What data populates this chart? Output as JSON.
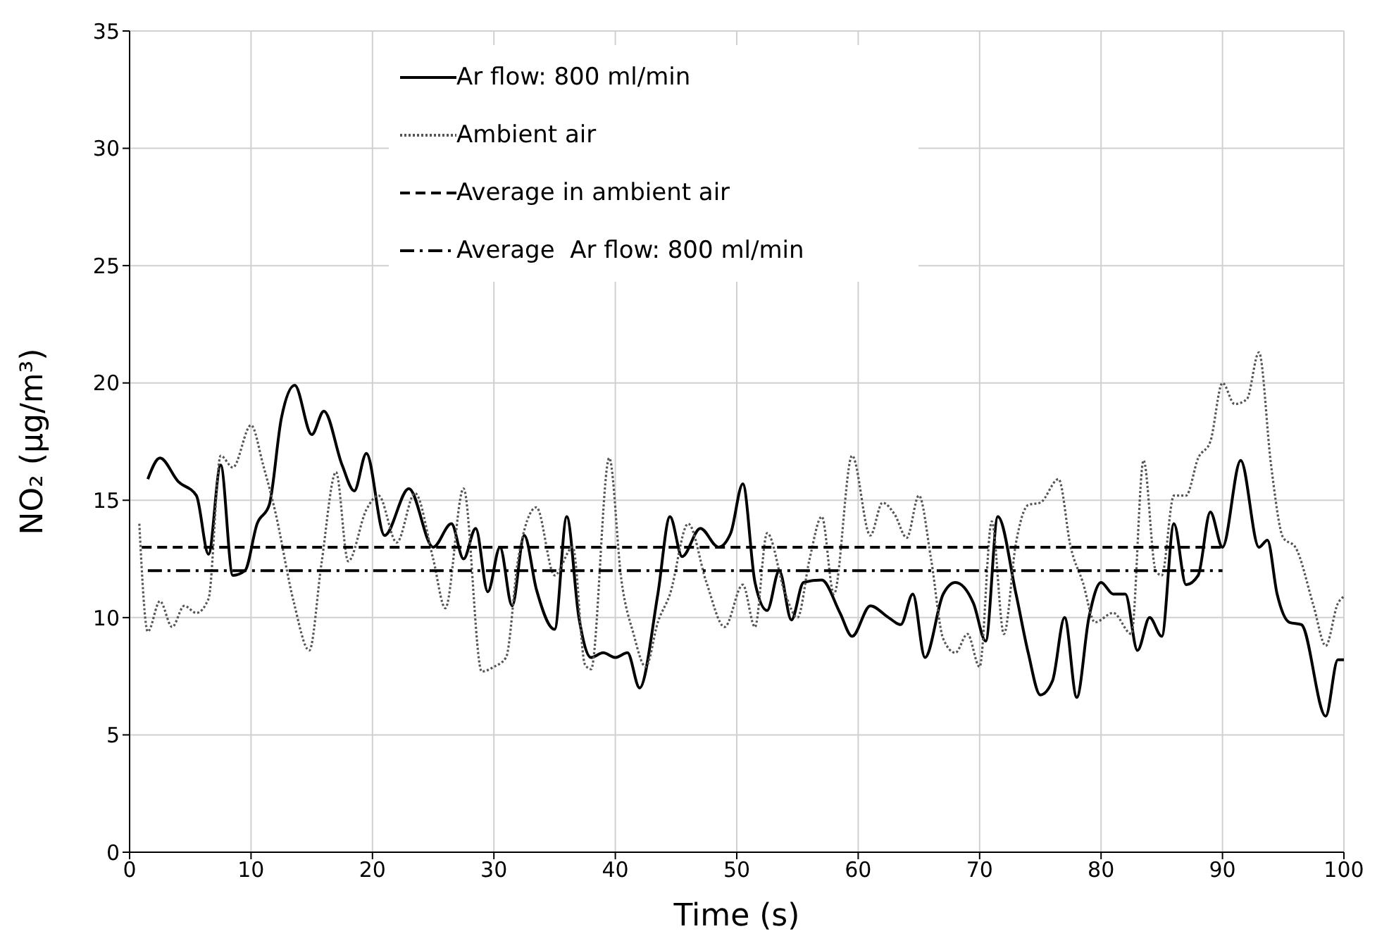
{
  "chart_data": {
    "type": "line",
    "xlabel": "Time (s)",
    "ylabel": "NO₂ (µg/m³)",
    "xlim": [
      0,
      100
    ],
    "xticks": [
      0,
      10,
      20,
      30,
      40,
      50,
      60,
      70,
      80,
      90,
      100
    ],
    "ylim": [
      0,
      35
    ],
    "yticks": [
      0,
      5,
      10,
      15,
      20,
      25,
      30,
      35
    ],
    "grid": true,
    "legend": "top",
    "marker": "none",
    "series": [
      {
        "name": "Ar flow: 800 ml/min",
        "color": "#000000",
        "line_style": "solid",
        "x": [
          1.5,
          2.5,
          4,
          5.5,
          6.5,
          7.5,
          8.5,
          9.5,
          10.5,
          11.5,
          12.5,
          13.6,
          15,
          16,
          17.5,
          18.5,
          19.5,
          21,
          23,
          25,
          26.5,
          27.5,
          28.5,
          29.5,
          30.5,
          31.5,
          32.5,
          33.5,
          35,
          36,
          37,
          38,
          39,
          40,
          41,
          42,
          43.5,
          44.5,
          45.5,
          47,
          48.5,
          49.5,
          50.5,
          51.5,
          52.5,
          53.5,
          54.5,
          55.5,
          57,
          58.5,
          59.5,
          61,
          62.5,
          63.5,
          64.5,
          65.5,
          67,
          68,
          69.5,
          70.5,
          71.5,
          73,
          74,
          75,
          76,
          77,
          78,
          79,
          80,
          81,
          82,
          83,
          84,
          85,
          86,
          87,
          88,
          89,
          90,
          91.5,
          93,
          93.7,
          94.5,
          95.5,
          96.5,
          98.5,
          99.5,
          100
        ],
        "values": [
          15.9,
          16.8,
          15.8,
          15.2,
          12.7,
          16.5,
          11.8,
          12,
          14,
          14.8,
          18.5,
          19.9,
          17.8,
          18.8,
          16.5,
          15.4,
          17,
          13.5,
          15.5,
          13,
          14,
          12.5,
          13.8,
          11.1,
          13,
          10.5,
          13.5,
          11.2,
          9.5,
          14.3,
          10,
          8.3,
          8.5,
          8.3,
          8.5,
          7,
          11,
          14.3,
          12.6,
          13.8,
          13,
          13.6,
          15.7,
          11.5,
          10.3,
          12,
          9.9,
          11.5,
          11.6,
          10.2,
          9.2,
          10.5,
          10,
          9.7,
          11,
          8.3,
          11,
          11.5,
          10.6,
          9,
          14.3,
          11,
          8.5,
          6.7,
          7.3,
          10,
          6.6,
          10,
          11.5,
          11,
          11,
          8.6,
          10,
          9.2,
          14,
          11.4,
          11.8,
          14.5,
          13,
          16.7,
          13,
          13.3,
          11,
          9.8,
          9.7,
          5.8,
          8.2,
          8.2
        ]
      },
      {
        "name": "Ambient air",
        "color": "#555555",
        "line_style": "dotted",
        "x": [
          0.8,
          1.5,
          2.5,
          3.5,
          4.5,
          5.5,
          6.5,
          7.5,
          8.5,
          10,
          11,
          12,
          13.5,
          14.8,
          15.8,
          17,
          18,
          19.5,
          20.5,
          22,
          23.5,
          25,
          26,
          27.5,
          29,
          30,
          31,
          32,
          33.5,
          35,
          36.5,
          37.5,
          38,
          39.5,
          40.5,
          41.5,
          42.5,
          43.5,
          44.5,
          46,
          47.5,
          49,
          50.5,
          51.5,
          52.5,
          54,
          55,
          56,
          57,
          58,
          59.5,
          61,
          62,
          63,
          64,
          65,
          66,
          67,
          68,
          69,
          70,
          71,
          72,
          73,
          74,
          75,
          76.5,
          77.5,
          78.5,
          79.5,
          81,
          82.5,
          83.5,
          84.5,
          85,
          86,
          87,
          88,
          89,
          90,
          91,
          92,
          93,
          94,
          95,
          96,
          97.5,
          98.5,
          99.5,
          100
        ],
        "values": [
          14,
          9.4,
          10.7,
          9.6,
          10.5,
          10.2,
          10.8,
          16.9,
          16.4,
          18.2,
          16.5,
          14.5,
          10.7,
          8.6,
          12.3,
          16.2,
          12.4,
          14.6,
          15.2,
          13.2,
          15.3,
          12.5,
          10.4,
          15.5,
          7.7,
          7.9,
          8.3,
          12.5,
          14.7,
          11.8,
          13,
          8,
          7.8,
          16.8,
          11.6,
          9.3,
          7.9,
          9.8,
          11,
          14,
          11.5,
          9.6,
          11.4,
          9.6,
          13.6,
          11,
          10,
          12.5,
          14.3,
          11,
          16.9,
          13.5,
          14.9,
          14.4,
          13.4,
          15.2,
          12.5,
          9.1,
          8.5,
          9.3,
          7.9,
          14.1,
          9.3,
          13.2,
          14.8,
          14.9,
          15.9,
          13,
          11.5,
          9.8,
          10.2,
          9.3,
          16.7,
          12,
          11.8,
          15.2,
          15.2,
          16.8,
          17.5,
          20,
          19.1,
          19.3,
          21.3,
          16.5,
          13.4,
          13,
          10.5,
          8.8,
          10.6,
          10.9
        ]
      },
      {
        "name": "Average in ambient air",
        "color": "#000000",
        "line_style": "dashed",
        "x": [
          1,
          90
        ],
        "values": [
          13,
          13
        ]
      },
      {
        "name": "Average  Ar flow: 800 ml/min",
        "color": "#000000",
        "line_style": "dashdot",
        "x": [
          1.5,
          90
        ],
        "values": [
          12,
          12
        ]
      }
    ]
  }
}
